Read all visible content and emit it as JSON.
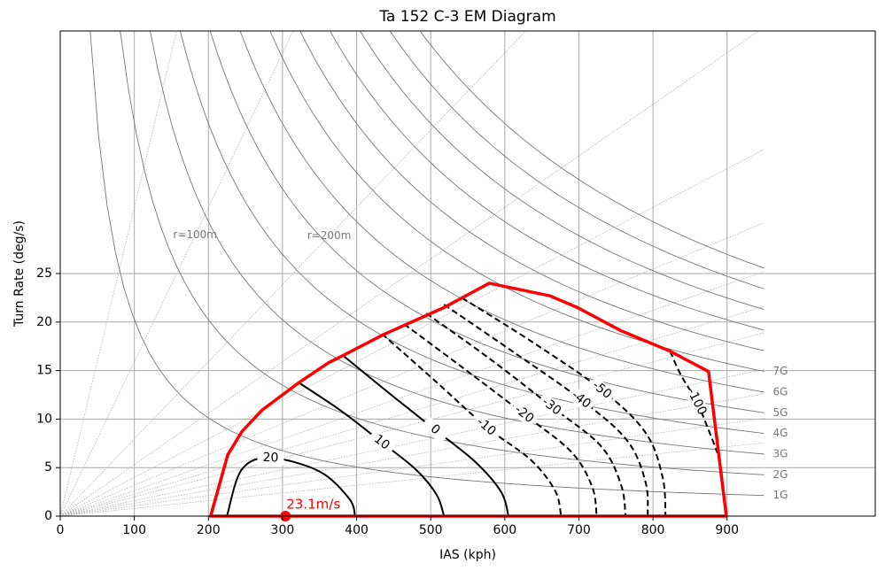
{
  "chart_data": {
    "type": "em_diagram",
    "title": "Ta 152 C-3 EM Diagram",
    "x_label": "IAS (kph)",
    "y_label": "Turn Rate (deg/s)",
    "xlim": [
      0,
      1100
    ],
    "ylim": [
      0,
      50
    ],
    "xticks": [
      0,
      100,
      200,
      300,
      400,
      500,
      600,
      700,
      800,
      900
    ],
    "yticks": [
      0,
      5,
      10,
      15,
      20,
      25
    ],
    "grid": true,
    "envelope": {
      "color": "#ff0000",
      "x": [
        203,
        226,
        245,
        272,
        321,
        362,
        388,
        436,
        518,
        579,
        661,
        698,
        757,
        823,
        875,
        899
      ],
      "values": [
        0,
        6.3,
        8.7,
        10.9,
        13.7,
        15.8,
        16.8,
        18.7,
        21.5,
        24.0,
        22.7,
        21.5,
        19.1,
        17.0,
        14.9,
        0
      ]
    },
    "max_climb": {
      "x": 304,
      "y": 0,
      "value": 23.1,
      "label": "23.1m/s",
      "color": "#ff0000"
    },
    "contours": [
      {
        "name": "20",
        "x": [
          225,
          245,
          284,
          350,
          390,
          398
        ],
        "values": [
          0,
          4.8,
          6.0,
          4.6,
          1.8,
          0
        ]
      },
      {
        "name": "10",
        "x": [
          321,
          380,
          434,
          480,
          508,
          518
        ],
        "values": [
          13.8,
          10.8,
          7.6,
          4.8,
          2.2,
          0
        ]
      },
      {
        "name": "0",
        "x": [
          381,
          445,
          506,
          560,
          595,
          605
        ],
        "values": [
          16.6,
          12.6,
          8.9,
          5.6,
          2.5,
          0
        ]
      },
      {
        "name": "-10",
        "x": [
          434,
          505,
          575,
          635,
          668,
          676
        ],
        "values": [
          18.8,
          14.0,
          9.2,
          5.8,
          2.6,
          0
        ]
      },
      {
        "name": "-20",
        "x": [
          464,
          545,
          626,
          690,
          718,
          724
        ],
        "values": [
          19.8,
          15.2,
          10.5,
          6.6,
          3.0,
          0
        ]
      },
      {
        "name": "-30",
        "x": [
          494,
          580,
          663,
          730,
          757,
          763
        ],
        "values": [
          20.9,
          16.2,
          11.3,
          7.2,
          3.2,
          0
        ]
      },
      {
        "name": "-40",
        "x": [
          518,
          610,
          703,
          765,
          790,
          793
        ],
        "values": [
          21.8,
          17.0,
          12.0,
          7.8,
          3.5,
          0
        ]
      },
      {
        "name": "-50",
        "x": [
          542,
          636,
          731,
          790,
          813,
          817
        ],
        "values": [
          22.5,
          18.0,
          13.0,
          8.6,
          4.0,
          0
        ]
      },
      {
        "name": "-100",
        "x": [
          823,
          838,
          859,
          877,
          887
        ],
        "values": [
          17.0,
          14.5,
          11.8,
          8.5,
          6.5
        ]
      }
    ],
    "load_factor_curves": {
      "n": [
        1,
        2,
        3,
        4,
        5,
        6,
        7,
        8,
        9,
        10,
        11,
        12
      ],
      "labels": [
        "1G",
        "2G",
        "3G",
        "4G",
        "5G",
        "6G",
        "7G"
      ],
      "x_end": 950
    },
    "radius_lines": {
      "r": [
        50,
        100,
        200,
        300,
        400,
        500,
        600,
        700,
        800,
        1000,
        1200,
        1500,
        2000
      ],
      "labels": [
        {
          "r": 100,
          "label": "r=100m",
          "x": 182
        },
        {
          "r": 200,
          "label": "r=200m",
          "x": 363
        }
      ],
      "x_end": 950
    }
  }
}
